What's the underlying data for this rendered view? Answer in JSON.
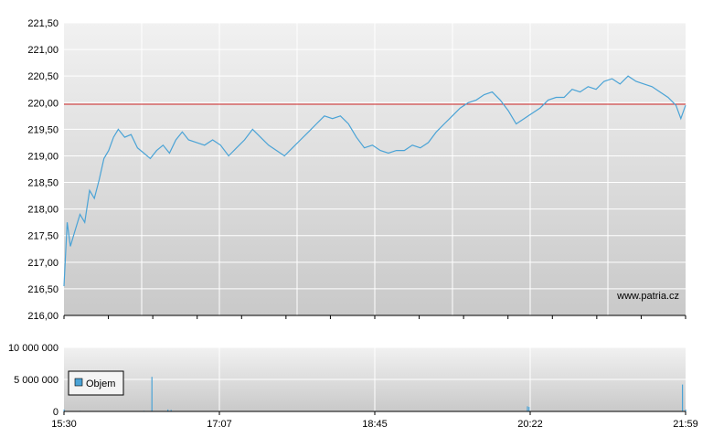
{
  "chart_data": [
    {
      "type": "line",
      "name": "price",
      "ylim": [
        216.0,
        221.5
      ],
      "yticks": [
        "216,00",
        "216,50",
        "217,00",
        "217,50",
        "218,00",
        "218,50",
        "219,00",
        "219,50",
        "220,00",
        "220,50",
        "221,00",
        "221,50"
      ],
      "reference_line": 219.97,
      "reference_color": "#cc2222",
      "line_color": "#4aa3d6",
      "watermark": "www.patria.cz",
      "points": [
        [
          "15:30",
          216.55
        ],
        [
          "15:32",
          217.75
        ],
        [
          "15:34",
          217.3
        ],
        [
          "15:37",
          217.6
        ],
        [
          "15:40",
          217.9
        ],
        [
          "15:43",
          217.75
        ],
        [
          "15:46",
          218.35
        ],
        [
          "15:49",
          218.2
        ],
        [
          "15:52",
          218.55
        ],
        [
          "15:55",
          218.95
        ],
        [
          "15:58",
          219.1
        ],
        [
          "16:01",
          219.35
        ],
        [
          "16:04",
          219.5
        ],
        [
          "16:08",
          219.35
        ],
        [
          "16:12",
          219.4
        ],
        [
          "16:16",
          219.15
        ],
        [
          "16:20",
          219.05
        ],
        [
          "16:24",
          218.95
        ],
        [
          "16:28",
          219.1
        ],
        [
          "16:32",
          219.2
        ],
        [
          "16:36",
          219.05
        ],
        [
          "16:40",
          219.3
        ],
        [
          "16:44",
          219.45
        ],
        [
          "16:48",
          219.3
        ],
        [
          "16:53",
          219.25
        ],
        [
          "16:58",
          219.2
        ],
        [
          "17:03",
          219.3
        ],
        [
          "17:08",
          219.2
        ],
        [
          "17:13",
          219.0
        ],
        [
          "17:18",
          219.15
        ],
        [
          "17:23",
          219.3
        ],
        [
          "17:28",
          219.5
        ],
        [
          "17:33",
          219.35
        ],
        [
          "17:38",
          219.2
        ],
        [
          "17:43",
          219.1
        ],
        [
          "17:48",
          219.0
        ],
        [
          "17:53",
          219.15
        ],
        [
          "17:58",
          219.3
        ],
        [
          "18:03",
          219.45
        ],
        [
          "18:08",
          219.6
        ],
        [
          "18:13",
          219.75
        ],
        [
          "18:18",
          219.7
        ],
        [
          "18:23",
          219.75
        ],
        [
          "18:28",
          219.6
        ],
        [
          "18:33",
          219.35
        ],
        [
          "18:38",
          219.15
        ],
        [
          "18:43",
          219.2
        ],
        [
          "18:48",
          219.1
        ],
        [
          "18:53",
          219.05
        ],
        [
          "18:58",
          219.1
        ],
        [
          "19:03",
          219.1
        ],
        [
          "19:08",
          219.2
        ],
        [
          "19:13",
          219.15
        ],
        [
          "19:18",
          219.25
        ],
        [
          "19:23",
          219.45
        ],
        [
          "19:28",
          219.6
        ],
        [
          "19:33",
          219.75
        ],
        [
          "19:38",
          219.9
        ],
        [
          "19:43",
          220.0
        ],
        [
          "19:48",
          220.05
        ],
        [
          "19:53",
          220.15
        ],
        [
          "19:58",
          220.2
        ],
        [
          "20:03",
          220.05
        ],
        [
          "20:08",
          219.85
        ],
        [
          "20:13",
          219.6
        ],
        [
          "20:18",
          219.7
        ],
        [
          "20:23",
          219.8
        ],
        [
          "20:28",
          219.9
        ],
        [
          "20:33",
          220.05
        ],
        [
          "20:38",
          220.1
        ],
        [
          "20:43",
          220.1
        ],
        [
          "20:48",
          220.25
        ],
        [
          "20:53",
          220.2
        ],
        [
          "20:58",
          220.3
        ],
        [
          "21:03",
          220.25
        ],
        [
          "21:08",
          220.4
        ],
        [
          "21:13",
          220.45
        ],
        [
          "21:18",
          220.35
        ],
        [
          "21:23",
          220.5
        ],
        [
          "21:28",
          220.4
        ],
        [
          "21:33",
          220.35
        ],
        [
          "21:38",
          220.3
        ],
        [
          "21:43",
          220.2
        ],
        [
          "21:48",
          220.1
        ],
        [
          "21:53",
          219.95
        ],
        [
          "21:56",
          219.7
        ],
        [
          "21:59",
          219.95
        ]
      ]
    },
    {
      "type": "bar",
      "name": "volume",
      "ylim": [
        0,
        10000000
      ],
      "yticks": [
        "0",
        "5 000 000",
        "10 000 000"
      ],
      "legend": "Objem",
      "bar_color": "#4aa3d6",
      "bars": [
        [
          "15:30",
          300000
        ],
        [
          "15:40",
          80000
        ],
        [
          "16:00",
          60000
        ],
        [
          "16:20",
          100000
        ],
        [
          "16:25",
          5400000
        ],
        [
          "16:30",
          50000
        ],
        [
          "16:35",
          300000
        ],
        [
          "16:37",
          250000
        ],
        [
          "17:20",
          60000
        ],
        [
          "18:00",
          40000
        ],
        [
          "18:45",
          80000
        ],
        [
          "19:00",
          60000
        ],
        [
          "19:30",
          50000
        ],
        [
          "19:45",
          60000
        ],
        [
          "20:00",
          40000
        ],
        [
          "20:20",
          800000
        ],
        [
          "20:21",
          700000
        ],
        [
          "20:40",
          60000
        ],
        [
          "21:00",
          50000
        ],
        [
          "21:20",
          40000
        ],
        [
          "21:57",
          4200000
        ],
        [
          "21:59",
          300000
        ]
      ]
    }
  ],
  "x_axis": {
    "start": "15:30",
    "end": "21:59",
    "tick_labels": [
      "15:30",
      "17:07",
      "18:45",
      "20:22",
      "21:59"
    ]
  }
}
